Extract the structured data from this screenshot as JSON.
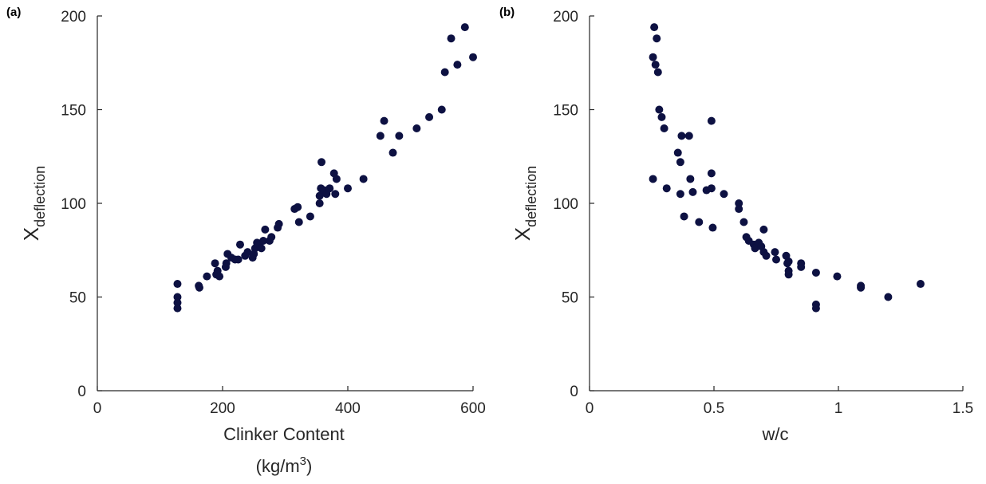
{
  "chart_data": [
    {
      "panel_label": "(a)",
      "type": "scatter",
      "xlabel": "Clinker Content",
      "xlabel_unit": "(kg/m",
      "xlabel_unit_sup": "3",
      "xlabel_unit_close": ")",
      "ylabel_main": "X",
      "ylabel_sub": "deflection",
      "xlim": [
        0,
        600
      ],
      "ylim": [
        0,
        200
      ],
      "xticks": [
        0,
        200,
        400,
        600
      ],
      "yticks": [
        0,
        50,
        100,
        150,
        200
      ],
      "xtick_labels": [
        "0",
        "200",
        "400",
        "600"
      ],
      "ytick_labels": [
        "0",
        "50",
        "100",
        "150",
        "200"
      ],
      "grid": false,
      "marker_color": "#0d1142",
      "points": [
        [
          128,
          57
        ],
        [
          128,
          50
        ],
        [
          128,
          47
        ],
        [
          128,
          44
        ],
        [
          162,
          56
        ],
        [
          163,
          55
        ],
        [
          175,
          61
        ],
        [
          188,
          68
        ],
        [
          190,
          62
        ],
        [
          192,
          64
        ],
        [
          195,
          61
        ],
        [
          205,
          66
        ],
        [
          206,
          68
        ],
        [
          208,
          73
        ],
        [
          214,
          71
        ],
        [
          220,
          70
        ],
        [
          225,
          70
        ],
        [
          228,
          78
        ],
        [
          236,
          72
        ],
        [
          240,
          74
        ],
        [
          248,
          71
        ],
        [
          250,
          73
        ],
        [
          252,
          76
        ],
        [
          255,
          79
        ],
        [
          258,
          78
        ],
        [
          262,
          76
        ],
        [
          265,
          80
        ],
        [
          268,
          86
        ],
        [
          275,
          80
        ],
        [
          278,
          82
        ],
        [
          288,
          87
        ],
        [
          290,
          89
        ],
        [
          315,
          97
        ],
        [
          320,
          98
        ],
        [
          322,
          90
        ],
        [
          340,
          93
        ],
        [
          355,
          100
        ],
        [
          355,
          104
        ],
        [
          357,
          108
        ],
        [
          358,
          122
        ],
        [
          362,
          107
        ],
        [
          366,
          105
        ],
        [
          371,
          108
        ],
        [
          378,
          116
        ],
        [
          380,
          105
        ],
        [
          382,
          113
        ],
        [
          400,
          108
        ],
        [
          425,
          113
        ],
        [
          452,
          136
        ],
        [
          458,
          144
        ],
        [
          472,
          127
        ],
        [
          482,
          136
        ],
        [
          510,
          140
        ],
        [
          530,
          146
        ],
        [
          550,
          150
        ],
        [
          555,
          170
        ],
        [
          565,
          188
        ],
        [
          575,
          174
        ],
        [
          587,
          194
        ],
        [
          600,
          178
        ]
      ]
    },
    {
      "panel_label": "(b)",
      "type": "scatter",
      "xlabel": "w/c",
      "ylabel_main": "X",
      "ylabel_sub": "deflection",
      "xlim": [
        0,
        1.5
      ],
      "ylim": [
        0,
        200
      ],
      "xticks": [
        0,
        0.5,
        1,
        1.5
      ],
      "yticks": [
        0,
        50,
        100,
        150,
        200
      ],
      "xtick_labels": [
        "0",
        "0.5",
        "1",
        "1.5"
      ],
      "ytick_labels": [
        "0",
        "50",
        "100",
        "150",
        "200"
      ],
      "grid": false,
      "marker_color": "#0d1142",
      "points": [
        [
          0.26,
          194
        ],
        [
          0.255,
          178
        ],
        [
          0.27,
          188
        ],
        [
          0.265,
          174
        ],
        [
          0.275,
          170
        ],
        [
          0.28,
          150
        ],
        [
          0.29,
          146
        ],
        [
          0.3,
          140
        ],
        [
          0.255,
          113
        ],
        [
          0.31,
          108
        ],
        [
          0.355,
          127
        ],
        [
          0.365,
          122
        ],
        [
          0.37,
          136
        ],
        [
          0.4,
          136
        ],
        [
          0.365,
          105
        ],
        [
          0.38,
          93
        ],
        [
          0.405,
          113
        ],
        [
          0.415,
          106
        ],
        [
          0.44,
          90
        ],
        [
          0.47,
          107
        ],
        [
          0.49,
          108
        ],
        [
          0.49,
          116
        ],
        [
          0.495,
          87
        ],
        [
          0.49,
          144
        ],
        [
          0.54,
          105
        ],
        [
          0.6,
          100
        ],
        [
          0.6,
          97
        ],
        [
          0.62,
          90
        ],
        [
          0.63,
          82
        ],
        [
          0.64,
          80
        ],
        [
          0.66,
          78
        ],
        [
          0.665,
          76
        ],
        [
          0.68,
          79
        ],
        [
          0.69,
          77
        ],
        [
          0.7,
          86
        ],
        [
          0.7,
          74
        ],
        [
          0.71,
          72
        ],
        [
          0.745,
          74
        ],
        [
          0.75,
          70
        ],
        [
          0.79,
          72
        ],
        [
          0.795,
          68
        ],
        [
          0.8,
          62
        ],
        [
          0.8,
          64
        ],
        [
          0.8,
          69
        ],
        [
          0.85,
          68
        ],
        [
          0.85,
          66
        ],
        [
          0.91,
          63
        ],
        [
          0.91,
          46
        ],
        [
          0.91,
          44
        ],
        [
          0.995,
          61
        ],
        [
          1.09,
          56
        ],
        [
          1.09,
          55
        ],
        [
          1.2,
          50
        ],
        [
          1.33,
          57
        ]
      ]
    }
  ]
}
